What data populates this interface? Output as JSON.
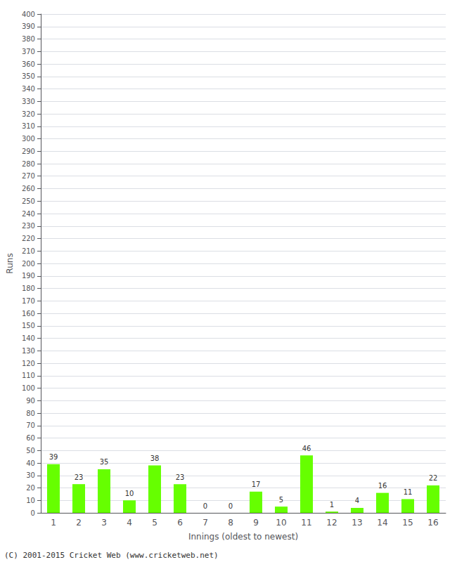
{
  "chart_data": {
    "type": "bar",
    "xlabel": "Innings (oldest to newest)",
    "ylabel": "Runs",
    "categories": [
      "1",
      "2",
      "3",
      "4",
      "5",
      "6",
      "7",
      "8",
      "9",
      "10",
      "11",
      "12",
      "13",
      "14",
      "15",
      "16"
    ],
    "values": [
      39,
      23,
      35,
      10,
      38,
      23,
      0,
      0,
      17,
      5,
      46,
      1,
      4,
      16,
      11,
      22
    ],
    "color": "#66ff00",
    "ylim": [
      0,
      400
    ],
    "yticks": [
      0,
      10,
      20,
      30,
      40,
      50,
      60,
      70,
      80,
      90,
      100,
      110,
      120,
      130,
      140,
      150,
      160,
      170,
      180,
      190,
      200,
      210,
      220,
      230,
      240,
      250,
      260,
      270,
      280,
      290,
      300,
      310,
      320,
      330,
      340,
      350,
      360,
      370,
      380,
      390,
      400
    ],
    "grid": true,
    "data_labels": true,
    "annotations": [
      "(C) 2001-2015 Cricket Web (www.cricketweb.net)"
    ]
  }
}
